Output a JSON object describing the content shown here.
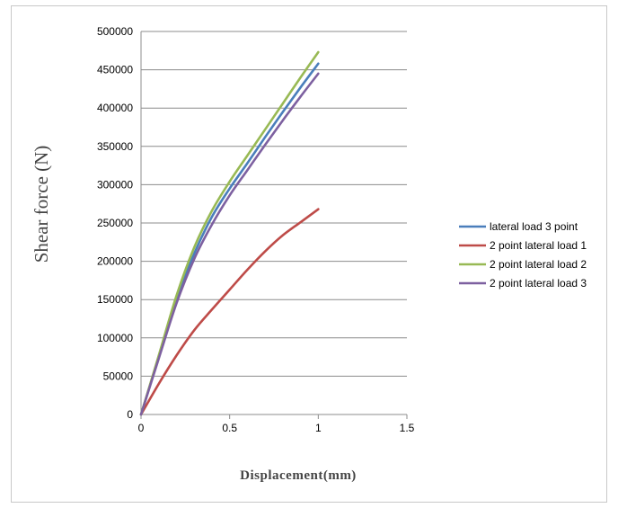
{
  "chart_data": {
    "type": "line",
    "title": "",
    "xlabel": "Displacement(mm)",
    "ylabel": "Shear force (N)",
    "xlim": [
      0,
      1.5
    ],
    "ylim": [
      0,
      500000
    ],
    "xticks": [
      0,
      0.5,
      1,
      1.5
    ],
    "xtick_labels": [
      "0",
      "0.5",
      "1",
      "1.5"
    ],
    "yticks": [
      0,
      50000,
      100000,
      150000,
      200000,
      250000,
      300000,
      350000,
      400000,
      450000,
      500000
    ],
    "ytick_labels": [
      "0",
      "50000",
      "100000",
      "150000",
      "200000",
      "250000",
      "300000",
      "350000",
      "400000",
      "450000",
      "500000"
    ],
    "grid": "horizontal",
    "legend_position": "right",
    "series": [
      {
        "name": "lateral load 3 point",
        "color": "#4a7ebb",
        "x": [
          0,
          0.1,
          0.2,
          0.3,
          0.4,
          0.5,
          0.6,
          0.7,
          0.8,
          0.9,
          1.0
        ],
        "y": [
          0,
          75000,
          150000,
          210000,
          258000,
          295000,
          328000,
          362000,
          395000,
          427000,
          458000
        ]
      },
      {
        "name": "2 point lateral load 1",
        "color": "#be4b48",
        "x": [
          0,
          0.1,
          0.2,
          0.3,
          0.4,
          0.5,
          0.6,
          0.7,
          0.8,
          0.9,
          1.0
        ],
        "y": [
          0,
          40000,
          77000,
          110000,
          137000,
          163000,
          189000,
          213000,
          234000,
          251000,
          268000
        ]
      },
      {
        "name": "2 point lateral load 2",
        "color": "#98b954",
        "x": [
          0,
          0.1,
          0.2,
          0.3,
          0.4,
          0.5,
          0.6,
          0.7,
          0.8,
          0.9,
          1.0
        ],
        "y": [
          0,
          77000,
          155000,
          218000,
          266000,
          304000,
          338000,
          372000,
          406000,
          440000,
          473000
        ]
      },
      {
        "name": "2 point lateral load 3",
        "color": "#7d60a0",
        "x": [
          0,
          0.1,
          0.2,
          0.3,
          0.4,
          0.5,
          0.6,
          0.7,
          0.8,
          0.9,
          1.0
        ],
        "y": [
          0,
          73000,
          145000,
          203000,
          248000,
          286000,
          319000,
          352000,
          384000,
          415000,
          445000
        ]
      }
    ]
  }
}
